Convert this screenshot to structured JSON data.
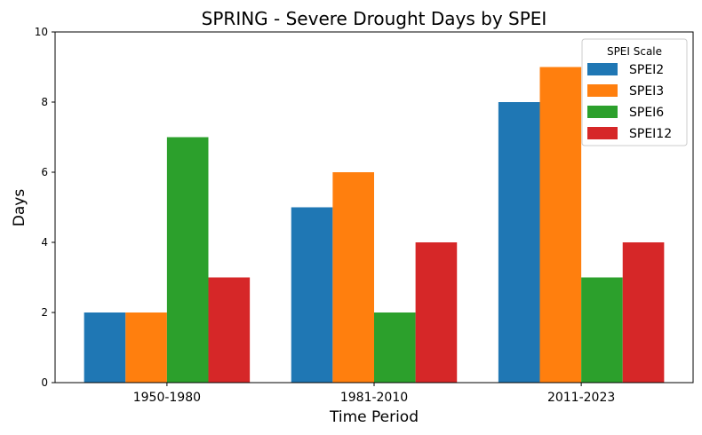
{
  "chart_data": {
    "type": "bar",
    "title": "SPRING - Severe Drought Days by SPEI",
    "xlabel": "Time Period",
    "ylabel": "Days",
    "categories": [
      "1950-1980",
      "1981-2010",
      "2011-2023"
    ],
    "ylim": [
      0,
      10
    ],
    "yticks": [
      0,
      2,
      4,
      6,
      8,
      10
    ],
    "grid": false,
    "legend": {
      "title": "SPEI Scale",
      "placement": "top-right"
    },
    "series": [
      {
        "name": "SPEI2",
        "color": "#1f77b4",
        "values": [
          2,
          5,
          8
        ]
      },
      {
        "name": "SPEI3",
        "color": "#ff7f0e",
        "values": [
          2,
          6,
          9
        ]
      },
      {
        "name": "SPEI6",
        "color": "#2ca02c",
        "values": [
          7,
          2,
          3
        ]
      },
      {
        "name": "SPEI12",
        "color": "#d62728",
        "values": [
          3,
          4,
          4
        ]
      }
    ]
  }
}
